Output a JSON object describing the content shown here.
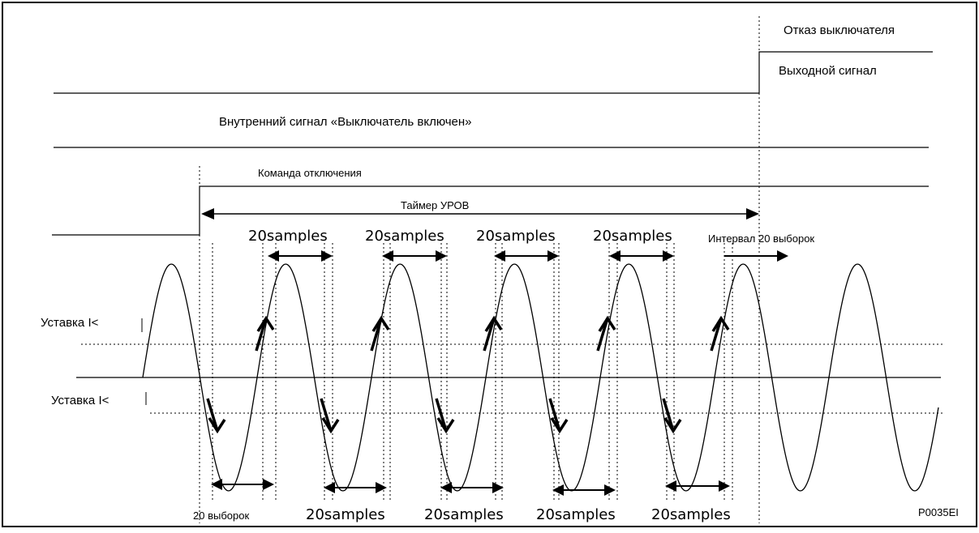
{
  "labels": {
    "breaker_fail": "Отказ выключателя",
    "output_signal": "Выходной сигнал",
    "breaker_closed": "Внутренний сигнал «Выключатель включен»",
    "trip_command": "Команда отключения",
    "cbf_timer": "Таймер УРОВ",
    "interval_label": "Интервал 20 выборок",
    "setting_upper": "Уставка I<",
    "setting_lower": "Уставка I<",
    "samples_bottom_first": "20 выборок",
    "figure_id": "P0035EI"
  },
  "samples_label": "20samples",
  "top_sample_labels": [
    "20samples",
    "20samples",
    "20samples",
    "20samples"
  ],
  "bottom_sample_labels": [
    "20samples",
    "20samples",
    "20samples",
    "20samples"
  ],
  "colors": {
    "line": "#000000",
    "background": "#ffffff"
  }
}
